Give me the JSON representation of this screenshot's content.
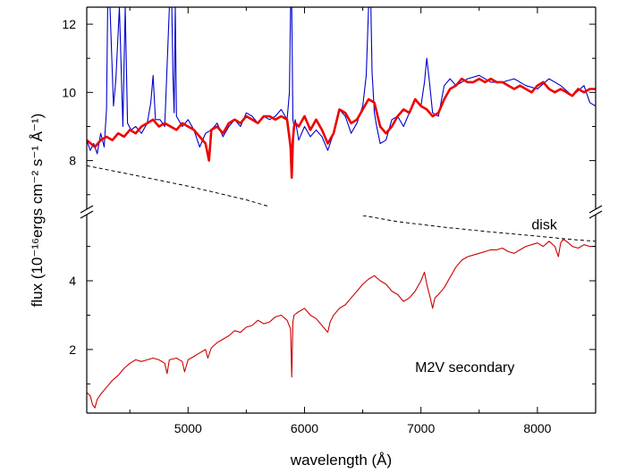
{
  "chart_data": {
    "type": "line",
    "title": "",
    "xlabel": "wavelength (Å)",
    "ylabel": "flux (10⁻¹⁶ergs cm⁻² s⁻¹ Å⁻¹)",
    "xlim": [
      4130,
      8500
    ],
    "x_ticks": [
      5000,
      6000,
      7000,
      8000
    ],
    "y_axis": {
      "broken": true,
      "lower_segment": {
        "ylim": [
          0.15,
          5.9
        ],
        "ticks": [
          2,
          4
        ]
      },
      "upper_segment": {
        "ylim": [
          6.6,
          12.5
        ],
        "ticks": [
          8,
          10,
          12
        ]
      }
    },
    "colors": {
      "observed": "#0000cc",
      "model": "#ee0000",
      "secondary": "#cc0000",
      "disk": "#000000"
    },
    "series": [
      {
        "key": "observed",
        "segment": "upper",
        "x": [
          4130,
          4160,
          4190,
          4220,
          4250,
          4280,
          4300,
          4310,
          4330,
          4360,
          4380,
          4410,
          4440,
          4460,
          4480,
          4510,
          4550,
          4600,
          4650,
          4680,
          4700,
          4720,
          4760,
          4800,
          4840,
          4850,
          4860,
          4870,
          4880,
          4890,
          4900,
          4950,
          5000,
          5050,
          5100,
          5150,
          5200,
          5250,
          5300,
          5350,
          5400,
          5450,
          5500,
          5550,
          5600,
          5650,
          5700,
          5750,
          5800,
          5850,
          5870,
          5880,
          5890,
          5900,
          5910,
          5920,
          5950,
          6000,
          6050,
          6100,
          6150,
          6200,
          6250,
          6300,
          6350,
          6400,
          6450,
          6500,
          6530,
          6550,
          6560,
          6570,
          6580,
          6600,
          6620,
          6650,
          6700,
          6750,
          6800,
          6850,
          6900,
          6950,
          7000,
          7030,
          7050,
          7070,
          7100,
          7150,
          7200,
          7250,
          7300,
          7400,
          7500,
          7600,
          7700,
          7800,
          7900,
          8000,
          8100,
          8200,
          8300,
          8400,
          8450,
          8500
        ],
        "y": [
          8.6,
          8.3,
          8.5,
          8.2,
          8.8,
          8.4,
          9.5,
          12.5,
          12.5,
          9.6,
          10.4,
          12.5,
          9.0,
          12.5,
          9.1,
          8.9,
          9.0,
          8.8,
          9.1,
          9.7,
          10.5,
          9.2,
          9.2,
          9.0,
          12.5,
          12.5,
          12.5,
          10.5,
          9.4,
          12.5,
          9.3,
          9.0,
          9.2,
          8.9,
          8.4,
          8.8,
          8.9,
          9.1,
          8.7,
          9.0,
          9.2,
          9.0,
          9.4,
          9.3,
          9.1,
          9.3,
          9.2,
          9.3,
          9.5,
          9.2,
          10.0,
          12.5,
          12.5,
          9.2,
          9.0,
          9.2,
          8.6,
          9.0,
          8.7,
          8.9,
          8.7,
          8.3,
          8.8,
          9.5,
          9.3,
          8.8,
          9.1,
          9.6,
          10.5,
          12.5,
          12.5,
          12.5,
          10.6,
          9.4,
          9.0,
          8.5,
          8.6,
          9.2,
          9.3,
          9.0,
          9.4,
          9.8,
          9.6,
          10.3,
          11.0,
          10.4,
          9.4,
          9.3,
          10.2,
          10.4,
          10.2,
          10.4,
          10.5,
          10.3,
          10.3,
          10.4,
          10.2,
          10.1,
          10.4,
          10.2,
          9.9,
          10.2,
          9.7,
          9.6
        ]
      },
      {
        "key": "model",
        "segment": "upper",
        "x": [
          4130,
          4200,
          4250,
          4300,
          4350,
          4400,
          4450,
          4500,
          4550,
          4600,
          4650,
          4700,
          4750,
          4800,
          4850,
          4900,
          4950,
          5000,
          5050,
          5100,
          5150,
          5180,
          5200,
          5250,
          5300,
          5350,
          5400,
          5450,
          5500,
          5550,
          5600,
          5650,
          5700,
          5750,
          5800,
          5850,
          5880,
          5890,
          5900,
          5910,
          5920,
          5950,
          6000,
          6050,
          6100,
          6150,
          6200,
          6250,
          6300,
          6350,
          6400,
          6450,
          6500,
          6550,
          6600,
          6650,
          6700,
          6750,
          6800,
          6850,
          6900,
          6950,
          7000,
          7050,
          7100,
          7150,
          7200,
          7250,
          7300,
          7350,
          7400,
          7450,
          7500,
          7550,
          7600,
          7650,
          7700,
          7750,
          7800,
          7850,
          7900,
          7950,
          8000,
          8050,
          8100,
          8150,
          8200,
          8250,
          8300,
          8350,
          8400,
          8450,
          8500
        ],
        "y": [
          8.6,
          8.4,
          8.6,
          8.7,
          8.6,
          8.8,
          8.7,
          8.9,
          8.8,
          9.0,
          9.1,
          9.2,
          9.0,
          9.1,
          9.0,
          8.9,
          9.1,
          9.0,
          8.9,
          8.7,
          8.5,
          8.0,
          8.9,
          9.0,
          8.8,
          9.1,
          9.2,
          9.1,
          9.3,
          9.2,
          9.1,
          9.3,
          9.3,
          9.2,
          9.3,
          9.2,
          8.4,
          7.5,
          8.6,
          9.0,
          9.1,
          9.0,
          9.3,
          8.9,
          9.2,
          8.9,
          8.5,
          8.8,
          9.5,
          9.4,
          9.1,
          9.2,
          9.5,
          9.8,
          9.7,
          9.0,
          8.8,
          9.0,
          9.3,
          9.5,
          9.4,
          9.8,
          9.6,
          9.5,
          9.3,
          9.4,
          9.8,
          10.1,
          10.2,
          10.4,
          10.3,
          10.3,
          10.4,
          10.3,
          10.4,
          10.3,
          10.3,
          10.2,
          10.1,
          10.2,
          10.1,
          10.0,
          10.2,
          10.3,
          10.1,
          10.0,
          10.1,
          10.0,
          9.9,
          10.1,
          10.0,
          10.1,
          10.1
        ]
      },
      {
        "key": "secondary",
        "segment": "lower",
        "x": [
          4130,
          4160,
          4180,
          4200,
          4220,
          4250,
          4300,
          4350,
          4400,
          4450,
          4500,
          4550,
          4600,
          4650,
          4700,
          4750,
          4800,
          4820,
          4840,
          4900,
          4950,
          4970,
          5000,
          5050,
          5100,
          5150,
          5170,
          5200,
          5250,
          5300,
          5350,
          5400,
          5450,
          5500,
          5550,
          5600,
          5650,
          5700,
          5750,
          5800,
          5850,
          5880,
          5890,
          5900,
          5910,
          5930,
          5950,
          6000,
          6050,
          6100,
          6150,
          6200,
          6220,
          6250,
          6300,
          6350,
          6400,
          6450,
          6500,
          6550,
          6600,
          6650,
          6700,
          6750,
          6800,
          6850,
          6900,
          6950,
          7000,
          7030,
          7050,
          7080,
          7100,
          7120,
          7150,
          7200,
          7250,
          7300,
          7350,
          7400,
          7450,
          7500,
          7550,
          7600,
          7650,
          7700,
          7750,
          7800,
          7850,
          7900,
          7950,
          8000,
          8050,
          8100,
          8150,
          8180,
          8200,
          8220,
          8250,
          8300,
          8350,
          8400,
          8450,
          8500
        ],
        "y": [
          0.75,
          0.65,
          0.4,
          0.3,
          0.55,
          0.7,
          0.9,
          1.1,
          1.25,
          1.45,
          1.6,
          1.7,
          1.65,
          1.7,
          1.75,
          1.7,
          1.6,
          1.3,
          1.7,
          1.75,
          1.65,
          1.35,
          1.7,
          1.8,
          1.9,
          2.0,
          1.75,
          2.05,
          2.2,
          2.3,
          2.4,
          2.55,
          2.5,
          2.65,
          2.7,
          2.85,
          2.75,
          2.8,
          2.95,
          3.0,
          2.85,
          2.6,
          1.2,
          2.8,
          3.0,
          3.05,
          3.1,
          3.2,
          3.0,
          2.9,
          2.7,
          2.5,
          2.8,
          3.0,
          3.2,
          3.3,
          3.5,
          3.7,
          3.9,
          4.05,
          4.15,
          4.0,
          3.9,
          3.7,
          3.6,
          3.4,
          3.5,
          3.7,
          4.0,
          4.25,
          3.9,
          3.5,
          3.2,
          3.5,
          3.6,
          3.8,
          4.1,
          4.4,
          4.6,
          4.7,
          4.75,
          4.8,
          4.85,
          4.9,
          4.9,
          4.95,
          4.85,
          4.8,
          4.9,
          5.0,
          5.05,
          5.1,
          5.0,
          5.15,
          5.0,
          4.7,
          5.1,
          5.2,
          5.15,
          5.0,
          4.95,
          5.05,
          5.0,
          5.0
        ]
      },
      {
        "key": "disk",
        "segment": "upper",
        "dashed": true,
        "x": [
          4130,
          4500,
          5000,
          5500,
          5700
        ],
        "y": [
          7.85,
          7.6,
          7.25,
          6.85,
          6.65
        ]
      },
      {
        "key": "disk-lower",
        "segment": "lower",
        "dashed": true,
        "x": [
          6500,
          6800,
          7200,
          7600,
          8000,
          8300,
          8500
        ],
        "y": [
          5.9,
          5.72,
          5.56,
          5.42,
          5.3,
          5.2,
          5.15
        ]
      }
    ],
    "annotations": [
      {
        "text": "disk",
        "x": 7950,
        "y": 5.5,
        "segment": "lower"
      },
      {
        "text": "M2V secondary",
        "x": 6950,
        "y": 1.35,
        "segment": "lower"
      }
    ]
  }
}
